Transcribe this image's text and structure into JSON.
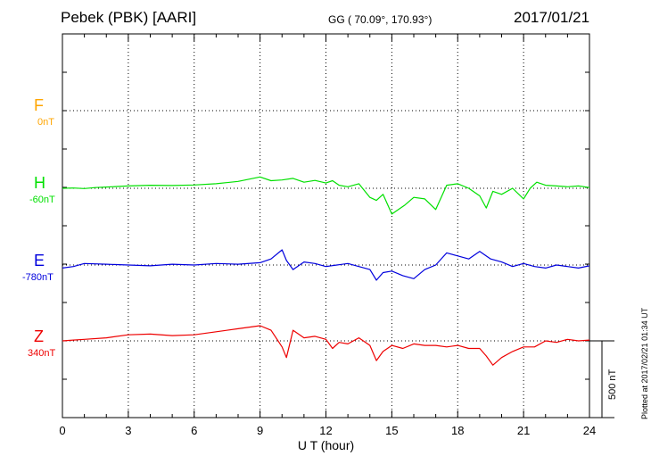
{
  "header": {
    "station": "Pebek (PBK)  [AARI]",
    "coords": "GG ( 70.09°, 170.93°)",
    "date": "2017/01/21"
  },
  "plotted_note": "Plotted at 2017/02/21 01:34 UT",
  "scale_label": "500 nT",
  "chart_data": {
    "type": "line",
    "xlabel": "U T (hour)",
    "xlim": [
      0,
      24
    ],
    "xticks": [
      "0",
      "3",
      "6",
      "9",
      "12",
      "15",
      "18",
      "21",
      "24"
    ],
    "series": [
      {
        "name": "F",
        "baseline": "0nT",
        "color": "#ffa500",
        "x": [],
        "y": []
      },
      {
        "name": "H",
        "baseline": "-60nT",
        "color": "#00e000",
        "x": [
          0,
          0.5,
          1,
          1.5,
          2,
          2.5,
          3,
          4,
          5,
          6,
          7,
          8,
          9,
          9.5,
          10,
          10.5,
          11,
          11.5,
          12,
          12.3,
          12.6,
          13,
          13.5,
          14,
          14.3,
          14.6,
          15,
          15.3,
          15.6,
          16,
          16.5,
          17,
          17.5,
          18,
          18.5,
          19,
          19.3,
          19.6,
          20,
          20.5,
          21,
          21.3,
          21.6,
          22,
          22.5,
          23,
          23.5,
          24
        ],
        "y": [
          -60,
          -58,
          -62,
          -55,
          -52,
          -48,
          -45,
          -40,
          -42,
          -38,
          -30,
          -15,
          15,
          -10,
          -5,
          5,
          -20,
          -8,
          -25,
          -10,
          -40,
          -50,
          -30,
          -120,
          -140,
          -100,
          -230,
          -200,
          -170,
          -120,
          -130,
          -200,
          -40,
          -30,
          -60,
          -110,
          -190,
          -80,
          -100,
          -60,
          -130,
          -60,
          -20,
          -40,
          -45,
          -50,
          -45,
          -55
        ]
      },
      {
        "name": "E",
        "baseline": "-780nT",
        "color": "#0000dd",
        "x": [
          0,
          0.5,
          1,
          2,
          3,
          4,
          5,
          6,
          7,
          8,
          9,
          9.5,
          10,
          10.2,
          10.5,
          11,
          11.5,
          12,
          12.5,
          13,
          13.5,
          14,
          14.3,
          14.6,
          15,
          15.5,
          16,
          16.5,
          17,
          17.5,
          18,
          18.5,
          19,
          19.5,
          20,
          20.5,
          21,
          21.5,
          22,
          22.5,
          23,
          23.5,
          24
        ],
        "y": [
          -800,
          -790,
          -770,
          -775,
          -780,
          -785,
          -775,
          -780,
          -770,
          -775,
          -765,
          -740,
          -680,
          -750,
          -810,
          -760,
          -770,
          -790,
          -780,
          -770,
          -790,
          -810,
          -880,
          -830,
          -820,
          -850,
          -870,
          -810,
          -780,
          -700,
          -720,
          -740,
          -690,
          -740,
          -760,
          -790,
          -770,
          -790,
          -800,
          -780,
          -790,
          -800,
          -785
        ]
      },
      {
        "name": "Z",
        "baseline": "340nT",
        "color": "#ee0000",
        "x": [
          0,
          0.5,
          1,
          2,
          3,
          4,
          5,
          6,
          7,
          8,
          9,
          9.5,
          10,
          10.2,
          10.5,
          11,
          11.5,
          12,
          12.3,
          12.6,
          13,
          13.5,
          14,
          14.3,
          14.6,
          15,
          15.5,
          16,
          16.5,
          17,
          17.5,
          18,
          18.5,
          19,
          19.3,
          19.6,
          20,
          20.5,
          21,
          21.5,
          22,
          22.5,
          23,
          23.5,
          24
        ],
        "y": [
          340,
          345,
          350,
          360,
          380,
          385,
          375,
          380,
          400,
          420,
          440,
          410,
          300,
          230,
          410,
          360,
          370,
          350,
          290,
          330,
          320,
          360,
          310,
          210,
          270,
          310,
          290,
          320,
          310,
          310,
          300,
          310,
          290,
          290,
          240,
          180,
          230,
          270,
          300,
          300,
          340,
          330,
          350,
          340,
          345
        ]
      }
    ],
    "grid": true
  }
}
